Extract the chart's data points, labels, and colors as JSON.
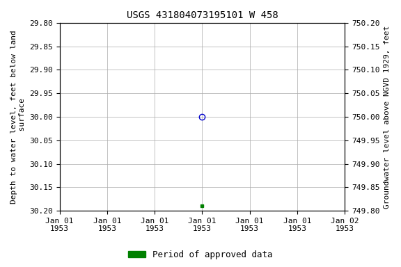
{
  "title": "USGS 431804073195101 W 458",
  "ylabel_left": "Depth to water level, feet below land\n surface",
  "ylabel_right": "Groundwater level above NGVD 1929, feet",
  "ylim_left_top": 29.8,
  "ylim_left_bottom": 30.2,
  "ylim_right_top": 750.2,
  "ylim_right_bottom": 749.8,
  "xlim": [
    0,
    6
  ],
  "xtick_positions": [
    0,
    1,
    2,
    3,
    4,
    5,
    6
  ],
  "xtick_labels": [
    "Jan 01\n1953",
    "Jan 01\n1953",
    "Jan 01\n1953",
    "Jan 01\n1953",
    "Jan 01\n1953",
    "Jan 01\n1953",
    "Jan 02\n1953"
  ],
  "yticks_left": [
    29.8,
    29.85,
    29.9,
    29.95,
    30.0,
    30.05,
    30.1,
    30.15,
    30.2
  ],
  "ytick_labels_left": [
    "29.80",
    "29.85",
    "29.90",
    "29.95",
    "30.00",
    "30.05",
    "30.10",
    "30.15",
    "30.20"
  ],
  "yticks_right": [
    750.2,
    750.15,
    750.1,
    750.05,
    750.0,
    749.95,
    749.9,
    749.85,
    749.8
  ],
  "ytick_labels_right": [
    "750.20",
    "750.15",
    "750.10",
    "750.05",
    "750.00",
    "749.95",
    "749.90",
    "749.85",
    "749.80"
  ],
  "point1_x": 3,
  "point1_y": 30.0,
  "point1_color": "#0000cc",
  "point1_marker": "o",
  "point2_x": 3,
  "point2_y": 30.19,
  "point2_color": "#008000",
  "point2_marker": "s",
  "legend_label": "Period of approved data",
  "legend_color": "#008000",
  "bg_color": "#ffffff",
  "grid_color": "#aaaaaa",
  "title_fontsize": 10,
  "axis_fontsize": 8,
  "tick_fontsize": 8,
  "legend_fontsize": 9
}
